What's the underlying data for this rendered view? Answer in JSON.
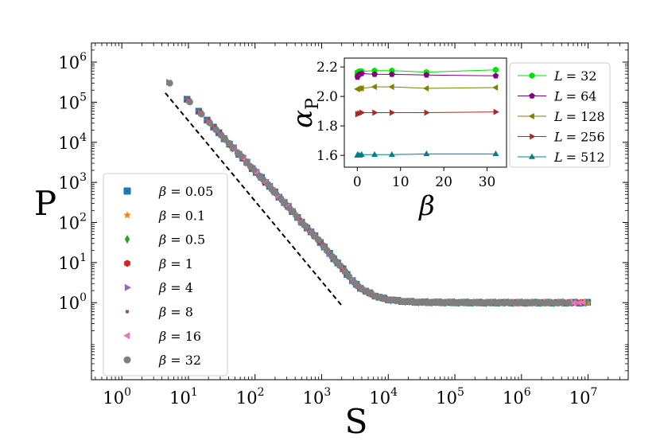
{
  "chart_data": [
    {
      "type": "scatter",
      "name": "main",
      "xlabel": "S",
      "ylabel": "P",
      "xscale": "log",
      "yscale": "log",
      "xlim": [
        0.35,
        40000000
      ],
      "ylim": [
        0.012,
        3000000
      ],
      "x_ticks": [
        {
          "base": "10",
          "exp": "0",
          "value": 1
        },
        {
          "base": "10",
          "exp": "1",
          "value": 10
        },
        {
          "base": "10",
          "exp": "2",
          "value": 100
        },
        {
          "base": "10",
          "exp": "3",
          "value": 1000
        },
        {
          "base": "10",
          "exp": "4",
          "value": 10000
        },
        {
          "base": "10",
          "exp": "5",
          "value": 100000
        },
        {
          "base": "10",
          "exp": "6",
          "value": 1000000
        },
        {
          "base": "10",
          "exp": "7",
          "value": 10000000
        }
      ],
      "y_ticks": [
        {
          "base": "10",
          "exp": "0",
          "value": 1
        },
        {
          "base": "10",
          "exp": "1",
          "value": 10
        },
        {
          "base": "10",
          "exp": "2",
          "value": 100
        },
        {
          "base": "10",
          "exp": "3",
          "value": 1000
        },
        {
          "base": "10",
          "exp": "4",
          "value": 10000
        },
        {
          "base": "10",
          "exp": "5",
          "value": 100000
        },
        {
          "base": "10",
          "exp": "6",
          "value": 1000000
        }
      ],
      "guide_line": {
        "style": "dashed",
        "color": "#000000",
        "from": [
          4.5,
          170000
        ],
        "to": [
          2000,
          0.85
        ]
      },
      "legend_position": "lower-left",
      "series": [
        {
          "name": "β = 0.05",
          "label_prefix": "β",
          "label_value": "= 0.05",
          "marker": "square",
          "color": "#1f77b4"
        },
        {
          "name": "β = 0.1",
          "label_prefix": "β",
          "label_value": "= 0.1",
          "marker": "star",
          "color": "#ff7f0e"
        },
        {
          "name": "β = 0.5",
          "label_prefix": "β",
          "label_value": "= 0.5",
          "marker": "diamond",
          "color": "#2ca02c"
        },
        {
          "name": "β = 1",
          "label_prefix": "β",
          "label_value": "= 1",
          "marker": "hexagon",
          "color": "#d62728"
        },
        {
          "name": "β = 4",
          "label_prefix": "β",
          "label_value": "= 4",
          "marker": "triangle-right",
          "color": "#9467bd"
        },
        {
          "name": "β = 8",
          "label_prefix": "β",
          "label_value": "= 8",
          "marker": "dot",
          "color": "#8c564b"
        },
        {
          "name": "β = 16",
          "label_prefix": "β",
          "label_value": "= 16",
          "marker": "triangle-left",
          "color": "#e377c2"
        },
        {
          "name": "β = 32",
          "label_prefix": "β",
          "label_value": "= 32",
          "marker": "circle",
          "color": "#7f7f7f"
        }
      ],
      "curve": {
        "description": "all β series collapse onto one curve",
        "points": [
          [
            5,
            320000
          ],
          [
            10,
            110000
          ],
          [
            15,
            55000
          ],
          [
            20,
            33000
          ],
          [
            25,
            22000
          ],
          [
            30,
            16000
          ],
          [
            40,
            9500
          ],
          [
            50,
            6500
          ],
          [
            60,
            4700
          ],
          [
            70,
            3600
          ],
          [
            80,
            2800
          ],
          [
            100,
            1900
          ],
          [
            120,
            1400
          ],
          [
            150,
            950
          ],
          [
            200,
            560
          ],
          [
            250,
            370
          ],
          [
            300,
            270
          ],
          [
            400,
            160
          ],
          [
            500,
            100
          ],
          [
            600,
            75
          ],
          [
            800,
            45
          ],
          [
            1000,
            30
          ],
          [
            1200,
            20
          ],
          [
            1500,
            13
          ],
          [
            2000,
            7.5
          ],
          [
            2500,
            4.8
          ],
          [
            3000,
            3.3
          ],
          [
            3500,
            2.6
          ],
          [
            4000,
            2.2
          ],
          [
            5000,
            1.8
          ],
          [
            6000,
            1.55
          ],
          [
            7000,
            1.4
          ],
          [
            8000,
            1.3
          ],
          [
            10000,
            1.2
          ],
          [
            12000,
            1.15
          ],
          [
            15000,
            1.1
          ],
          [
            20000,
            1.06
          ],
          [
            30000,
            1.03
          ],
          [
            50000,
            1.02
          ],
          [
            100000,
            1.01
          ],
          [
            300000,
            1.0
          ],
          [
            1000000,
            1.0
          ],
          [
            3000000,
            1.0
          ],
          [
            6000000,
            1.0
          ],
          [
            10000000,
            1.0
          ]
        ]
      }
    },
    {
      "type": "line",
      "name": "inset",
      "xlabel": "β",
      "ylabel_base": "α",
      "ylabel_sub": "P",
      "xlim": [
        -3,
        34.5
      ],
      "ylim": [
        1.52,
        2.26
      ],
      "x_ticks": [
        "0",
        "10",
        "20",
        "30"
      ],
      "x_tick_values": [
        0,
        10,
        20,
        30
      ],
      "y_ticks": [
        "1.6",
        "1.8",
        "2.0",
        "2.2"
      ],
      "y_tick_values": [
        1.6,
        1.8,
        2.0,
        2.2
      ],
      "x": [
        0.05,
        0.1,
        0.5,
        1,
        4,
        8,
        16,
        32
      ],
      "legend_position": "right-outside",
      "series": [
        {
          "name": "L = 32",
          "label_prefix": "L",
          "label_value": "= 32",
          "marker": "hexagon",
          "color": "#00e000",
          "values": [
            2.16,
            2.165,
            2.17,
            2.17,
            2.175,
            2.175,
            2.165,
            2.18
          ]
        },
        {
          "name": "L = 64",
          "label_prefix": "L",
          "label_value": "= 64",
          "marker": "pentagon",
          "color": "#800080",
          "values": [
            2.13,
            2.14,
            2.15,
            2.155,
            2.15,
            2.15,
            2.145,
            2.14
          ]
        },
        {
          "name": "L = 128",
          "label_prefix": "L",
          "label_value": "= 128",
          "marker": "triangle-left",
          "color": "#808000",
          "values": [
            2.05,
            2.05,
            2.055,
            2.055,
            2.065,
            2.065,
            2.055,
            2.06
          ]
        },
        {
          "name": "L = 256",
          "label_prefix": "L",
          "label_value": "= 256",
          "marker": "triangle-right",
          "color": "#a52a2a",
          "values": [
            1.88,
            1.88,
            1.885,
            1.89,
            1.89,
            1.89,
            1.89,
            1.895
          ]
        },
        {
          "name": "L = 512",
          "label_prefix": "L",
          "label_value": "= 512",
          "marker": "triangle-up",
          "color": "#008080",
          "values": [
            1.6,
            1.605,
            1.6,
            1.605,
            1.605,
            1.605,
            1.61,
            1.61
          ]
        }
      ]
    }
  ]
}
